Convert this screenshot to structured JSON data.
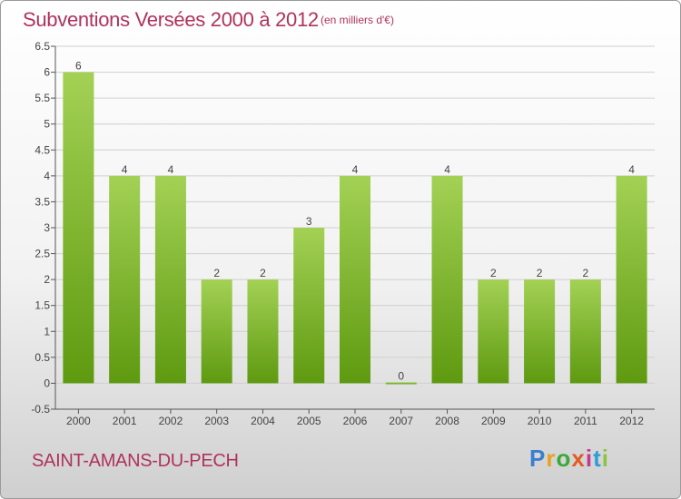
{
  "header": {
    "title": "Subventions Versées 2000 à 2012",
    "unit": "(en milliers d'€)"
  },
  "footer": {
    "commune": "SAINT-AMANS-DU-PECH",
    "logo": [
      "P",
      "r",
      "o",
      "x",
      "i",
      "t",
      "i"
    ]
  },
  "colors": {
    "title": "#b0325c",
    "bar_top": "#a3d155",
    "bar_bottom": "#5e9a10",
    "grid": "#d0d0d0"
  },
  "chart_data": {
    "type": "bar",
    "title": "Subventions Versées 2000 à 2012",
    "xlabel": "",
    "ylabel": "",
    "categories": [
      "2000",
      "2001",
      "2002",
      "2003",
      "2004",
      "2005",
      "2006",
      "2007",
      "2008",
      "2009",
      "2010",
      "2011",
      "2012"
    ],
    "values": [
      6,
      4,
      4,
      2,
      2,
      3,
      4,
      0,
      4,
      2,
      2,
      2,
      4
    ],
    "data_labels": [
      "6",
      "4",
      "4",
      "2",
      "2",
      "3",
      "4",
      "0",
      "4",
      "2",
      "2",
      "2",
      "4"
    ],
    "ylim": [
      -0.5,
      6.5
    ],
    "yticks": [
      -0.5,
      0,
      0.5,
      1,
      1.5,
      2,
      2.5,
      3,
      3.5,
      4,
      4.5,
      5,
      5.5,
      6,
      6.5
    ],
    "ytick_labels": [
      "-0.5",
      "0",
      "0.5",
      "1",
      "1.5",
      "2",
      "2.5",
      "3",
      "3.5",
      "4",
      "4.5",
      "5",
      "5.5",
      "6",
      "6.5"
    ],
    "grid": true,
    "legend": "none"
  }
}
